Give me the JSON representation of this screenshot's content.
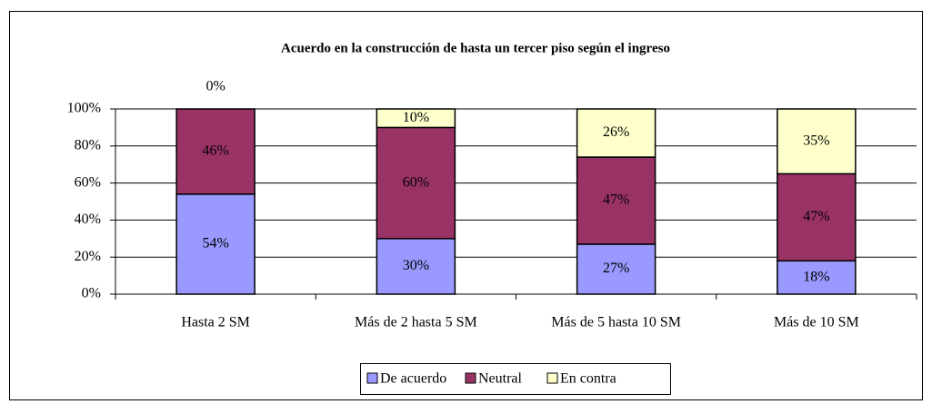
{
  "chart_data": {
    "type": "stacked_bar",
    "title": "Acuerdo en la construcción de hasta un tercer piso según el ingreso",
    "categories": [
      "Hasta 2 SM",
      "Más de 2 hasta 5 SM",
      "Más de 5 hasta 10 SM",
      "Más de 10 SM"
    ],
    "series": [
      {
        "name": "De acuerdo",
        "color": "#9999ff",
        "values": [
          54,
          30,
          27,
          18
        ],
        "value_labels": [
          "54%",
          "30%",
          "27%",
          "18%"
        ]
      },
      {
        "name": "Neutral",
        "color": "#993366",
        "values": [
          46,
          60,
          47,
          47
        ],
        "value_labels": [
          "46%",
          "60%",
          "47%",
          "47%"
        ]
      },
      {
        "name": "En contra",
        "color": "#ffffcc",
        "values": [
          0,
          10,
          26,
          35
        ],
        "value_labels": [
          "0%",
          "10%",
          "26%",
          "35%"
        ]
      }
    ],
    "ylim": [
      0,
      100
    ],
    "yticks": [
      {
        "value": 0,
        "label": "0%"
      },
      {
        "value": 20,
        "label": "20%"
      },
      {
        "value": 40,
        "label": "40%"
      },
      {
        "value": 60,
        "label": "60%"
      },
      {
        "value": 80,
        "label": "80%"
      },
      {
        "value": 100,
        "label": "100%"
      }
    ],
    "grid": true,
    "legend": "bottom"
  }
}
